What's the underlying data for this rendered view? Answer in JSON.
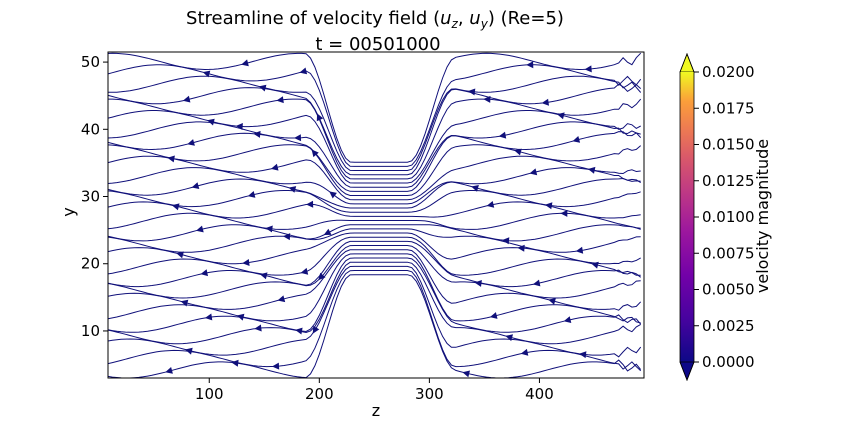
{
  "chart_data": {
    "type": "streamplot",
    "title_prefix": "Streamline of velocity field (",
    "title_math": [
      "u",
      "z",
      ", ",
      "u",
      "y"
    ],
    "title_suffix": ")  (Re=5)",
    "subtitle": "t = 00501000",
    "xlabel": "z",
    "ylabel": "y",
    "xlim": [
      8,
      495
    ],
    "ylim": [
      3,
      51.5
    ],
    "xticks": [
      100,
      200,
      300,
      400
    ],
    "yticks": [
      10,
      20,
      30,
      40,
      50
    ],
    "flow_direction": "negative z (leftward)",
    "obstacles": [
      {
        "z_start": 228,
        "z_end": 282,
        "y_start": 3,
        "y_end": 16
      },
      {
        "z_start": 228,
        "z_end": 282,
        "y_start": 37,
        "y_end": 51.5
      }
    ],
    "line_color": "#10107a",
    "colorbar": {
      "label": "velocity magnitude",
      "min": 0.0,
      "max": 0.02,
      "ticks": [
        "0.0000",
        "0.0025",
        "0.0050",
        "0.0075",
        "0.0100",
        "0.0125",
        "0.0150",
        "0.0175",
        "0.0200"
      ],
      "colormap": "plasma",
      "extend": "both"
    }
  }
}
